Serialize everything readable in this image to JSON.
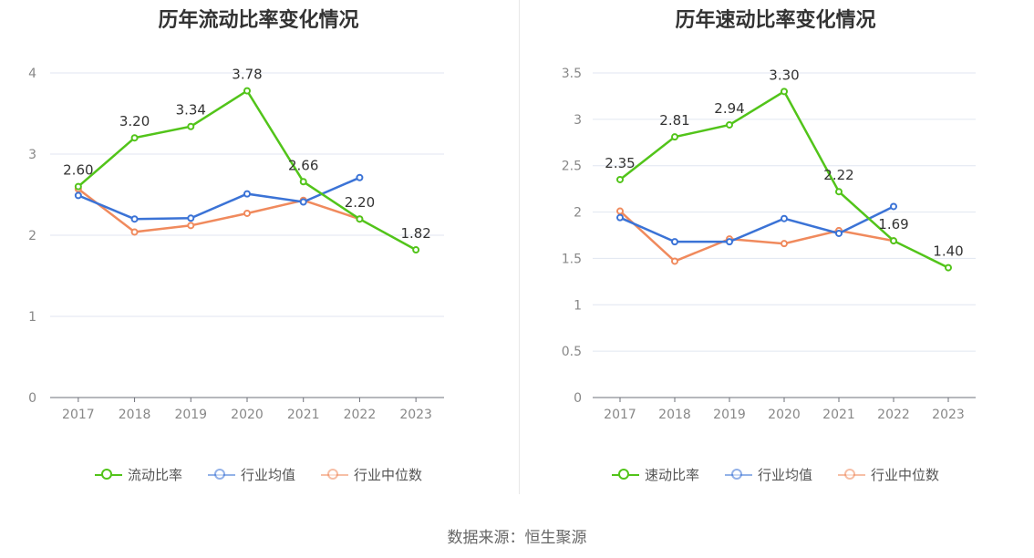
{
  "colors": {
    "primary": "#52c41a",
    "average": "#3b73d6",
    "median": "#f08a5d",
    "grid": "#e0e6f1",
    "axis": "#6e7079"
  },
  "source_text": "数据来源：恒生聚源",
  "chart_data": [
    {
      "type": "line",
      "title": "历年流动比率变化情况",
      "categories": [
        "2017",
        "2018",
        "2019",
        "2020",
        "2021",
        "2022",
        "2023"
      ],
      "ylim": [
        0,
        4
      ],
      "yticks": [
        "0",
        "1",
        "2",
        "3",
        "4"
      ],
      "grid": true,
      "legend_position": "bottom",
      "series": [
        {
          "name": "流动比率",
          "color": "#52c41a",
          "values": [
            2.6,
            3.2,
            3.34,
            3.78,
            2.66,
            2.2,
            1.82
          ],
          "labels": [
            "2.60",
            "3.20",
            "3.34",
            "3.78",
            "2.66",
            "2.20",
            "1.82"
          ]
        },
        {
          "name": "行业均值",
          "color": "#3b73d6",
          "values": [
            2.49,
            2.2,
            2.21,
            2.51,
            2.41,
            2.71,
            null
          ]
        },
        {
          "name": "行业中位数",
          "color": "#f08a5d",
          "values": [
            2.57,
            2.04,
            2.12,
            2.27,
            2.43,
            2.2,
            null
          ]
        }
      ]
    },
    {
      "type": "line",
      "title": "历年速动比率变化情况",
      "categories": [
        "2017",
        "2018",
        "2019",
        "2020",
        "2021",
        "2022",
        "2023"
      ],
      "ylim": [
        0,
        3.5
      ],
      "yticks": [
        "0",
        "0.5",
        "1",
        "1.5",
        "2",
        "2.5",
        "3",
        "3.5"
      ],
      "grid": true,
      "legend_position": "bottom",
      "series": [
        {
          "name": "速动比率",
          "color": "#52c41a",
          "values": [
            2.35,
            2.81,
            2.94,
            3.3,
            2.22,
            1.69,
            1.4
          ],
          "labels": [
            "2.35",
            "2.81",
            "2.94",
            "3.30",
            "2.22",
            "1.69",
            "1.40"
          ]
        },
        {
          "name": "行业均值",
          "color": "#3b73d6",
          "values": [
            1.94,
            1.68,
            1.68,
            1.93,
            1.77,
            2.06,
            null
          ]
        },
        {
          "name": "行业中位数",
          "color": "#f08a5d",
          "values": [
            2.01,
            1.47,
            1.71,
            1.66,
            1.8,
            1.69,
            null
          ]
        }
      ]
    }
  ]
}
